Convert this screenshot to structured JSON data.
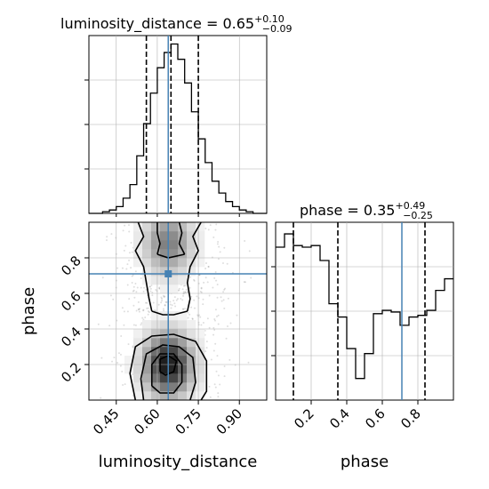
{
  "chart_data": {
    "type": "corner",
    "truth_color": "#4682b4",
    "parameters": [
      {
        "name": "luminosity_distance",
        "xlabel": "luminosity_distance",
        "title": "luminosity_distance = 0.65",
        "median": 0.65,
        "err_plus": "+0.10",
        "err_minus": "−0.09",
        "quantiles": [
          0.56,
          0.65,
          0.75
        ],
        "truth": 0.64,
        "range": [
          0.35,
          1.0
        ],
        "ticks": [
          0.45,
          0.6,
          0.75,
          0.9
        ],
        "tick_labels": [
          "0.45",
          "0.60",
          "0.75",
          "0.90"
        ],
        "hist_bins": [
          0.35,
          0.375,
          0.4,
          0.425,
          0.45,
          0.475,
          0.5,
          0.525,
          0.55,
          0.575,
          0.6,
          0.625,
          0.65,
          0.675,
          0.7,
          0.725,
          0.75,
          0.775,
          0.8,
          0.825,
          0.85,
          0.875,
          0.9,
          0.925,
          0.95,
          0.975,
          1.0
        ],
        "hist_counts": [
          0,
          0,
          0.01,
          0.02,
          0.04,
          0.09,
          0.17,
          0.34,
          0.53,
          0.71,
          0.86,
          0.95,
          1.0,
          0.91,
          0.77,
          0.6,
          0.44,
          0.3,
          0.19,
          0.12,
          0.07,
          0.04,
          0.02,
          0.01,
          0,
          0
        ]
      },
      {
        "name": "phase",
        "xlabel": "phase",
        "ylabel": "phase",
        "title": "phase = 0.35",
        "median": 0.35,
        "err_plus": "+0.49",
        "err_minus": "−0.25",
        "quantiles": [
          0.1,
          0.35,
          0.84
        ],
        "truth": 0.71,
        "range": [
          0.0,
          1.0
        ],
        "ticks": [
          0.2,
          0.4,
          0.6,
          0.8
        ],
        "tick_labels": [
          "0.2",
          "0.4",
          "0.6",
          "0.8"
        ],
        "hist_bins": [
          0.0,
          0.05,
          0.1,
          0.15,
          0.2,
          0.25,
          0.3,
          0.35,
          0.4,
          0.45,
          0.5,
          0.55,
          0.6,
          0.65,
          0.7,
          0.75,
          0.8,
          0.85,
          0.9,
          0.95,
          1.0
        ],
        "hist_counts": [
          0.92,
          1.0,
          0.93,
          0.92,
          0.93,
          0.84,
          0.58,
          0.5,
          0.31,
          0.13,
          0.28,
          0.52,
          0.54,
          0.53,
          0.45,
          0.5,
          0.51,
          0.54,
          0.66,
          0.73
        ]
      }
    ],
    "scatter_2d": {
      "x_param": "luminosity_distance",
      "y_param": "phase",
      "truth": [
        0.64,
        0.71
      ],
      "density_note": "bimodal in phase: high-density mode near phase 0.2, weaker band near phase 0.85"
    }
  }
}
